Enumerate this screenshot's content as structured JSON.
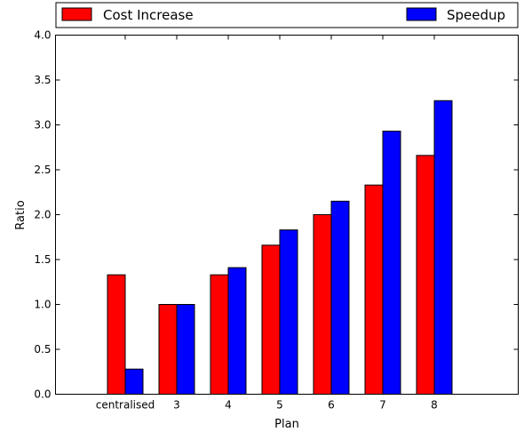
{
  "chart_data": {
    "type": "bar",
    "categories": [
      "centralised",
      "3",
      "4",
      "5",
      "6",
      "7",
      "8"
    ],
    "series": [
      {
        "name": "Cost Increase",
        "color": "#ff0000",
        "values": [
          1.33,
          1.0,
          1.33,
          1.66,
          2.0,
          2.33,
          2.66
        ]
      },
      {
        "name": "Speedup",
        "color": "#0000ff",
        "values": [
          0.28,
          1.0,
          1.41,
          1.83,
          2.15,
          2.93,
          3.27
        ]
      }
    ],
    "xlabel": "Plan",
    "ylabel": "Ratio",
    "ylim": [
      0,
      4.0
    ],
    "yticks": [
      "0.0",
      "0.5",
      "1.0",
      "1.5",
      "2.0",
      "2.5",
      "3.0",
      "3.5",
      "4.0"
    ],
    "legend_position": "top",
    "grid": false
  }
}
